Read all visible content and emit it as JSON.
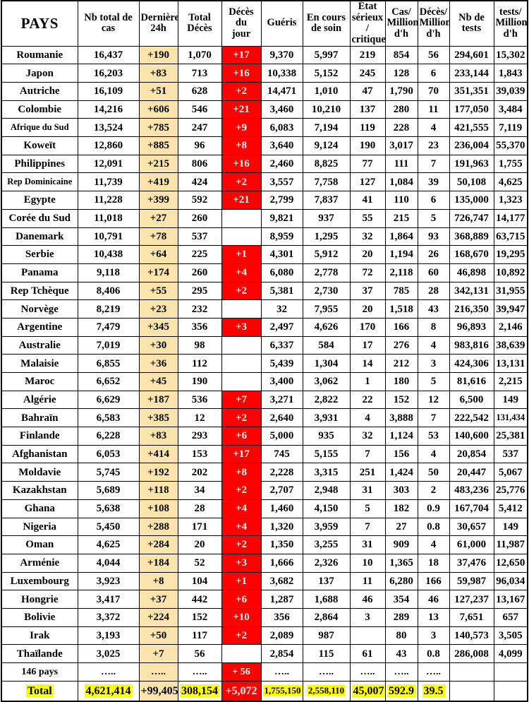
{
  "colors": {
    "last24_column_bg": "#FAE4AC",
    "deaths_today_bg": "#FE0000",
    "deaths_today_text": "#FFFFFF",
    "total_highlight": "#FFFF00",
    "grid_border": "#000000"
  },
  "chart_data": {
    "type": "table",
    "title": "Statistiques COVID-19 par pays",
    "columns": [
      "PAYS",
      "Nb total de cas",
      "Dernières\n24h",
      "Total\nDécès",
      "Décès du\njour",
      "Guéris",
      "En cours\nde soin",
      "État\nsérieux /\ncritique",
      "Cas/\nMillion\nd'h",
      "Décès/\nMillion\nd'h",
      "Nb de tests",
      "tests/\nMillion\nd'h"
    ],
    "rows": [
      [
        "Roumanie",
        "16,437",
        "+190",
        "1,070",
        "+17",
        "9,370",
        "5,997",
        "219",
        "854",
        "56",
        "294,601",
        "15,302"
      ],
      [
        "Japon",
        "16,203",
        "+83",
        "713",
        "+16",
        "10,338",
        "5,152",
        "245",
        "128",
        "6",
        "233,144",
        "1,843"
      ],
      [
        "Autriche",
        "16,109",
        "+51",
        "628",
        "+2",
        "14,471",
        "1,010",
        "47",
        "1,790",
        "70",
        "351,351",
        "39,039"
      ],
      [
        "Colombie",
        "14,216",
        "+606",
        "546",
        "+21",
        "3,460",
        "10,210",
        "137",
        "280",
        "11",
        "177,050",
        "3,484"
      ],
      [
        "Afrique du Sud",
        "13,524",
        "+785",
        "247",
        "+9",
        "6,083",
        "7,194",
        "119",
        "228",
        "4",
        "421,555",
        "7,119"
      ],
      [
        "Koweït",
        "12,860",
        "+885",
        "96",
        "+8",
        "3,640",
        "9,124",
        "190",
        "3,017",
        "23",
        "236,004",
        "55,370"
      ],
      [
        "Philippines",
        "12,091",
        "+215",
        "806",
        "+16",
        "2,460",
        "8,825",
        "77",
        "111",
        "7",
        "191,963",
        "1,755"
      ],
      [
        "Rep Dominicaine",
        "11,739",
        "+419",
        "424",
        "+2",
        "3,557",
        "7,758",
        "127",
        "1,084",
        "39",
        "50,108",
        "4,625"
      ],
      [
        "Egypte",
        "11,228",
        "+399",
        "592",
        "+21",
        "2,799",
        "7,837",
        "41",
        "110",
        "6",
        "135,000",
        "1,323"
      ],
      [
        "Corée du Sud",
        "11,018",
        "+27",
        "260",
        "",
        "9,821",
        "937",
        "55",
        "215",
        "5",
        "726,747",
        "14,177"
      ],
      [
        "Danemark",
        "10,791",
        "+78",
        "537",
        "",
        "8,959",
        "1,295",
        "32",
        "1,864",
        "93",
        "368,889",
        "63,715"
      ],
      [
        "Serbie",
        "10,438",
        "+64",
        "225",
        "+1",
        "4,301",
        "5,912",
        "20",
        "1,194",
        "26",
        "168,670",
        "19,295"
      ],
      [
        "Panama",
        "9,118",
        "+174",
        "260",
        "+4",
        "6,080",
        "2,778",
        "72",
        "2,118",
        "60",
        "46,898",
        "10,892"
      ],
      [
        "Rep Tchèque",
        "8,406",
        "+55",
        "295",
        "+2",
        "5,381",
        "2,730",
        "37",
        "785",
        "28",
        "342,131",
        "31,955"
      ],
      [
        "Norvège",
        "8,219",
        "+23",
        "232",
        "",
        "32",
        "7,955",
        "20",
        "1,518",
        "43",
        "216,350",
        "39,947"
      ],
      [
        "Argentine",
        "7,479",
        "+345",
        "356",
        "+3",
        "2,497",
        "4,626",
        "170",
        "166",
        "8",
        "96,893",
        "2,146"
      ],
      [
        "Australie",
        "7,019",
        "+30",
        "98",
        "",
        "6,337",
        "584",
        "17",
        "276",
        "4",
        "983,816",
        "38,639"
      ],
      [
        "Malaisie",
        "6,855",
        "+36",
        "112",
        "",
        "5,439",
        "1,304",
        "14",
        "212",
        "3",
        "424,306",
        "13,131"
      ],
      [
        "Maroc",
        "6,652",
        "+45",
        "190",
        "",
        "3,400",
        "3,062",
        "1",
        "180",
        "5",
        "81,616",
        "2,215"
      ],
      [
        "Algérie",
        "6,629",
        "+187",
        "536",
        "+7",
        "3,271",
        "2,822",
        "22",
        "152",
        "12",
        "6,500",
        "149"
      ],
      [
        "Bahraïn",
        "6,583",
        "+385",
        "12",
        "+2",
        "2,640",
        "3,931",
        "4",
        "3,888",
        "7",
        "222,542",
        "131,434"
      ],
      [
        "Finlande",
        "6,228",
        "+83",
        "293",
        "+6",
        "5,000",
        "935",
        "32",
        "1,124",
        "53",
        "140,600",
        "25,381"
      ],
      [
        "Afghanistan",
        "6,053",
        "+414",
        "153",
        "+17",
        "745",
        "5,155",
        "7",
        "156",
        "4",
        "20,854",
        "537"
      ],
      [
        "Moldavie",
        "5,745",
        "+192",
        "202",
        "+8",
        "2,228",
        "3,315",
        "251",
        "1,424",
        "50",
        "20,447",
        "5,067"
      ],
      [
        "Kazakhstan",
        "5,689",
        "+118",
        "34",
        "+2",
        "2,707",
        "2,948",
        "31",
        "303",
        "2",
        "483,236",
        "25,776"
      ],
      [
        "Ghana",
        "5,638",
        "+108",
        "28",
        "+4",
        "1,460",
        "4,150",
        "5",
        "182",
        "0.9",
        "167,704",
        "5,412"
      ],
      [
        "Nigeria",
        "5,450",
        "+288",
        "171",
        "+4",
        "1,320",
        "3,959",
        "7",
        "27",
        "0.8",
        "30,657",
        "149"
      ],
      [
        "Oman",
        "4,625",
        "+284",
        "20",
        "+2",
        "1,350",
        "3,255",
        "31",
        "909",
        "4",
        "61,000",
        "11,987"
      ],
      [
        "Arménie",
        "4,044",
        "+184",
        "52",
        "+3",
        "1,666",
        "2,326",
        "10",
        "1,365",
        "18",
        "37,476",
        "12,650"
      ],
      [
        "Luxembourg",
        "3,923",
        "+8",
        "104",
        "+1",
        "3,682",
        "137",
        "11",
        "6,280",
        "166",
        "59,987",
        "96,034"
      ],
      [
        "Hongrie",
        "3,417",
        "+37",
        "442",
        "+6",
        "1,287",
        "1,688",
        "46",
        "354",
        "46",
        "127,237",
        "13,167"
      ],
      [
        "Bolivie",
        "3,372",
        "+224",
        "152",
        "+10",
        "356",
        "2,864",
        "3",
        "289",
        "13",
        "7,651",
        "657"
      ],
      [
        "Irak",
        "3,193",
        "+50",
        "117",
        "+2",
        "2,089",
        "987",
        "",
        "80",
        "3",
        "140,573",
        "3,505"
      ],
      [
        "Thaïlande",
        "3,025",
        "+7",
        "56",
        "",
        "2,854",
        "115",
        "61",
        "43",
        "0.8",
        "286,008",
        "4,099"
      ]
    ],
    "summary_row": [
      "146 pays",
      "…..",
      "…..",
      "…..",
      "+ 56",
      "…..",
      "…..",
      "…..",
      "…..",
      "…..",
      "",
      ""
    ],
    "total_row": [
      "Total",
      "4,621,414",
      "+99,405",
      "308,154",
      "+5,072",
      "1,755,150",
      "2,558,110",
      "45,007",
      "592.9",
      "39.5",
      "",
      ""
    ]
  }
}
